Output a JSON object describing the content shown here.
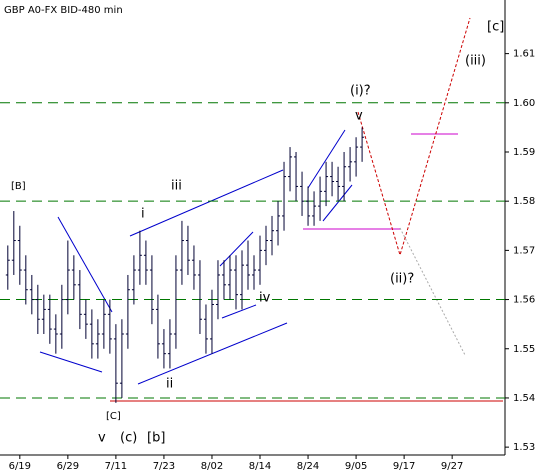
{
  "chart_data": {
    "type": "ohlc",
    "title": "GBP A0-FX BID-480 min",
    "x": [
      -2,
      -1,
      0,
      1,
      2,
      3,
      4,
      5,
      6,
      7,
      8,
      9,
      10,
      11,
      12,
      13,
      14,
      15,
      16,
      17,
      18,
      19,
      20,
      21,
      22,
      23,
      24,
      25,
      26,
      27,
      28,
      29,
      30,
      31,
      32,
      33,
      34,
      35,
      36,
      37,
      38,
      39,
      40,
      41,
      42,
      43,
      44,
      45,
      46,
      47,
      48,
      49,
      50,
      51,
      52,
      53,
      54,
      55,
      56,
      57
    ],
    "open": [
      1.565,
      1.568,
      1.572,
      1.566,
      1.562,
      1.56,
      1.556,
      1.558,
      1.554,
      1.553,
      1.56,
      1.566,
      1.563,
      1.557,
      1.555,
      1.551,
      1.553,
      1.557,
      1.552,
      1.543,
      1.553,
      1.562,
      1.566,
      1.569,
      1.566,
      1.558,
      1.551,
      1.549,
      1.553,
      1.566,
      1.572,
      1.568,
      1.565,
      1.556,
      1.552,
      1.559,
      1.565,
      1.563,
      1.566,
      1.561,
      1.567,
      1.565,
      1.566,
      1.57,
      1.572,
      1.574,
      1.577,
      1.585,
      1.589,
      1.583,
      1.58,
      1.577,
      1.579,
      1.582,
      1.585,
      1.584,
      1.583,
      1.587,
      1.588,
      1.591
    ],
    "high": [
      1.571,
      1.578,
      1.575,
      1.569,
      1.565,
      1.563,
      1.561,
      1.561,
      1.557,
      1.563,
      1.572,
      1.569,
      1.566,
      1.56,
      1.558,
      1.556,
      1.56,
      1.56,
      1.555,
      1.556,
      1.565,
      1.569,
      1.574,
      1.572,
      1.569,
      1.561,
      1.554,
      1.556,
      1.569,
      1.576,
      1.575,
      1.571,
      1.568,
      1.559,
      1.562,
      1.568,
      1.568,
      1.569,
      1.569,
      1.57,
      1.572,
      1.569,
      1.573,
      1.575,
      1.577,
      1.58,
      1.588,
      1.591,
      1.59,
      1.586,
      1.583,
      1.582,
      1.585,
      1.588,
      1.588,
      1.587,
      1.59,
      1.591,
      1.593,
      1.595
    ],
    "low": [
      1.562,
      1.565,
      1.563,
      1.559,
      1.557,
      1.553,
      1.553,
      1.551,
      1.549,
      1.55,
      1.557,
      1.56,
      1.554,
      1.552,
      1.548,
      1.548,
      1.55,
      1.549,
      1.539,
      1.54,
      1.55,
      1.559,
      1.563,
      1.563,
      1.555,
      1.548,
      1.546,
      1.546,
      1.55,
      1.563,
      1.565,
      1.562,
      1.553,
      1.549,
      1.549,
      1.556,
      1.56,
      1.56,
      1.558,
      1.558,
      1.562,
      1.562,
      1.563,
      1.567,
      1.569,
      1.571,
      1.574,
      1.582,
      1.58,
      1.577,
      1.575,
      1.575,
      1.576,
      1.579,
      1.581,
      1.58,
      1.58,
      1.584,
      1.585,
      1.588
    ],
    "close": [
      1.568,
      1.572,
      1.566,
      1.562,
      1.56,
      1.556,
      1.558,
      1.554,
      1.553,
      1.56,
      1.566,
      1.563,
      1.557,
      1.555,
      1.551,
      1.553,
      1.557,
      1.552,
      1.543,
      1.553,
      1.562,
      1.566,
      1.569,
      1.566,
      1.558,
      1.551,
      1.549,
      1.553,
      1.566,
      1.572,
      1.568,
      1.565,
      1.556,
      1.552,
      1.559,
      1.565,
      1.563,
      1.566,
      1.561,
      1.567,
      1.565,
      1.566,
      1.57,
      1.572,
      1.574,
      1.577,
      1.585,
      1.589,
      1.583,
      1.58,
      1.577,
      1.579,
      1.582,
      1.585,
      1.584,
      1.583,
      1.587,
      1.588,
      1.591,
      1.593
    ],
    "color": "#000033",
    "xlim": [
      -3.3,
      80.8
    ],
    "xticks": [
      {
        "value": 0,
        "label": "6/19"
      },
      {
        "value": 8,
        "label": "6/29"
      },
      {
        "value": 16,
        "label": "7/11"
      },
      {
        "value": 24,
        "label": "7/23"
      },
      {
        "value": 32,
        "label": "8/02"
      },
      {
        "value": 40,
        "label": "8/14"
      },
      {
        "value": 48,
        "label": "8/24"
      },
      {
        "value": 56,
        "label": "9/05"
      },
      {
        "value": 64,
        "label": "9/17"
      },
      {
        "value": 72,
        "label": "9/27"
      }
    ],
    "ylim": [
      1.5284,
      1.6209
    ],
    "yticks": [
      1.53,
      1.54,
      1.55,
      1.56,
      1.57,
      1.58,
      1.59,
      {
        "value": 1.6,
        "label": "1.60"
      },
      1.61
    ],
    "levels": [
      1.54,
      1.56,
      1.58,
      1.6
    ],
    "level_color": "#007700",
    "annotations": [
      "[B]",
      "iii",
      "i",
      "ii",
      "iv",
      "v",
      "(i)?",
      "(ii)?",
      "(iii)",
      "[c]",
      "[C]",
      "v",
      "(c)",
      "[b]"
    ]
  }
}
